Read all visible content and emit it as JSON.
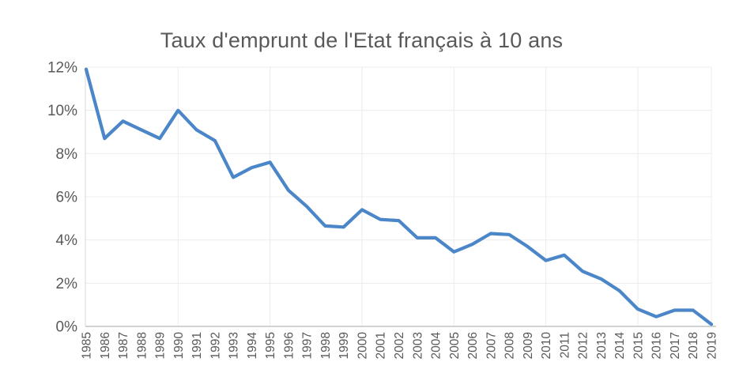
{
  "chart_data": {
    "type": "line",
    "title": "Taux d'emprunt de l'Etat français à 10 ans",
    "categories": [
      "1985",
      "1986",
      "1987",
      "1988",
      "1989",
      "1990",
      "1991",
      "1992",
      "1993",
      "1994",
      "1995",
      "1996",
      "1997",
      "1998",
      "1999",
      "2000",
      "2001",
      "2002",
      "2003",
      "2004",
      "2005",
      "2006",
      "2007",
      "2008",
      "2009",
      "2010",
      "2011",
      "2012",
      "2013",
      "2014",
      "2015",
      "2016",
      "2017",
      "2018",
      "2019"
    ],
    "values": [
      11.9,
      8.7,
      9.5,
      9.1,
      8.7,
      10.0,
      9.1,
      8.6,
      6.9,
      7.35,
      7.6,
      6.3,
      5.55,
      4.65,
      4.6,
      5.4,
      4.95,
      4.9,
      4.1,
      4.1,
      3.45,
      3.8,
      4.3,
      4.25,
      3.7,
      3.05,
      3.3,
      2.55,
      2.2,
      1.65,
      0.8,
      0.45,
      0.75,
      0.75,
      0.1
    ],
    "xlabel": "",
    "ylabel": "",
    "ylim": [
      0,
      12
    ],
    "y_ticks": [
      "0%",
      "2%",
      "4%",
      "6%",
      "8%",
      "10%",
      "12%"
    ],
    "x_gridline_categories": [
      "1990",
      "1995",
      "2000",
      "2005",
      "2010",
      "2015"
    ],
    "grid": true,
    "legend_position": "none",
    "series_color": "#4A86C8",
    "text_color": "#595959",
    "gridline_color": "#ececec",
    "axis_color": "#d9d9d9",
    "bottom_axis_color": "#d2d2d2"
  }
}
